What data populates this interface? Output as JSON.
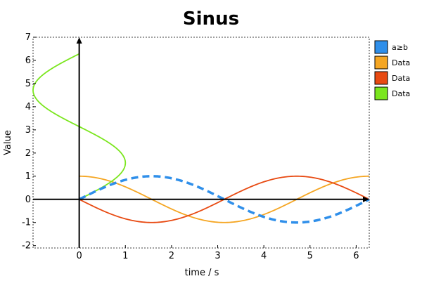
{
  "chart_data": {
    "type": "line",
    "title": "Sinus",
    "xlabel": "time / s",
    "ylabel": "Value",
    "xlim": [
      -1,
      6.2832
    ],
    "ylim": [
      -2.1,
      7
    ],
    "x_ticks": [
      0,
      1,
      2,
      3,
      4,
      5,
      6
    ],
    "y_ticks": [
      -2,
      -1,
      0,
      1,
      2,
      3,
      4,
      5,
      6,
      7
    ],
    "grid": false,
    "legend_position": "right",
    "series": [
      {
        "name": "a≥b",
        "color": "#2f8fea",
        "style": "dashed",
        "function": "sin",
        "x_range": [
          0,
          6.2832
        ]
      },
      {
        "name": "Data",
        "color": "#f5a623",
        "style": "solid",
        "function": "cos",
        "x_range": [
          0,
          6.2832
        ]
      },
      {
        "name": "Data",
        "color": "#e84a12",
        "style": "solid",
        "function": "-sin",
        "x_range": [
          0,
          6.2832
        ]
      },
      {
        "name": "Data",
        "color": "#7be61e",
        "style": "solid",
        "function": "parametric: x=sin(t), y=t",
        "t_range": [
          0,
          6.2832
        ]
      }
    ]
  }
}
